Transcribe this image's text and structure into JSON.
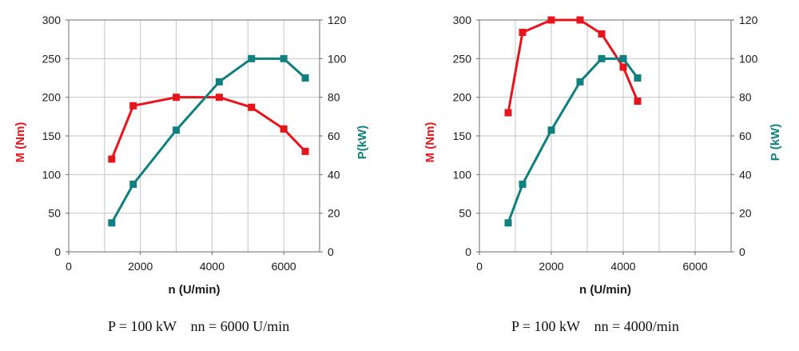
{
  "colors": {
    "torque": "#e8141b",
    "power": "#0f7f7f",
    "grid": "#c4c4c4",
    "frame": "#6b6b6b"
  },
  "chart_data": [
    {
      "type": "line",
      "xlabel": "n (U/min)",
      "ylabel": "M (Nm)",
      "y2label": "P(kW)",
      "xlim": [
        0,
        7000
      ],
      "xticks": [
        0,
        2000,
        4000,
        6000
      ],
      "ylim": [
        0,
        300
      ],
      "yticks": [
        0,
        50,
        100,
        150,
        200,
        250,
        300
      ],
      "y2lim": [
        0,
        120
      ],
      "y2ticks": [
        0,
        20,
        40,
        60,
        80,
        100,
        120
      ],
      "grid": true,
      "series": [
        {
          "axis": "left",
          "color": "#e8141b",
          "x": [
            1200,
            1800,
            3000,
            4200,
            5100,
            6000,
            6600
          ],
          "values": [
            120,
            189,
            200,
            200,
            187,
            159,
            130
          ]
        },
        {
          "axis": "right",
          "color": "#0f7f7f",
          "x": [
            1200,
            1800,
            3000,
            4200,
            5100,
            6000,
            6600
          ],
          "values": [
            15,
            35,
            63,
            88,
            100,
            100,
            90
          ]
        }
      ],
      "caption": "P = 100 kW    nn = 6000 U/min"
    },
    {
      "type": "line",
      "xlabel": "n (U/min)",
      "ylabel": "M (Nm)",
      "y2label": "P (kW)",
      "xlim": [
        0,
        7000
      ],
      "xticks": [
        0,
        2000,
        4000,
        6000
      ],
      "ylim": [
        0,
        300
      ],
      "yticks": [
        0,
        50,
        100,
        150,
        200,
        250,
        300
      ],
      "y2lim": [
        0,
        120
      ],
      "y2ticks": [
        0,
        20,
        40,
        60,
        80,
        100,
        120
      ],
      "grid": true,
      "series": [
        {
          "axis": "left",
          "color": "#e8141b",
          "x": [
            800,
            1200,
            2000,
            2800,
            3400,
            4000,
            4400
          ],
          "values": [
            180,
            284,
            300,
            300,
            282,
            239,
            195
          ]
        },
        {
          "axis": "right",
          "color": "#0f7f7f",
          "x": [
            800,
            1200,
            2000,
            2800,
            3400,
            4000,
            4400
          ],
          "values": [
            15,
            35,
            63,
            88,
            100,
            100,
            90
          ]
        }
      ],
      "caption": "P = 100 kW    nn = 4000/min"
    }
  ]
}
